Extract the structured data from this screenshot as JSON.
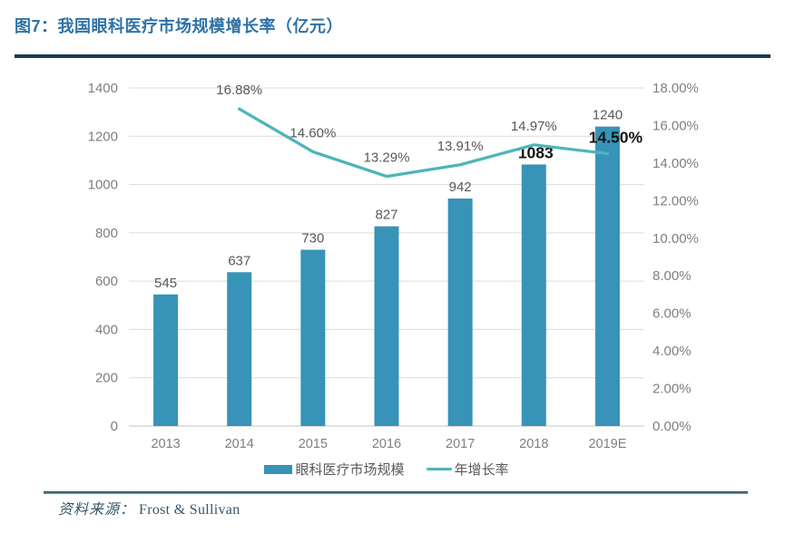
{
  "figure": {
    "title": "图7：我国眼科医疗市场规模增长率（亿元）",
    "source_label": "资料来源：",
    "source_value": "Frost & Sullivan"
  },
  "colors": {
    "title_text": "#2e72a6",
    "bar": "#3793b8",
    "line": "#4fb5ba",
    "grid": "#dcdcdc",
    "axis_line": "#c3c3c3",
    "axis_text": "#7f7f7f",
    "data_label_text": "#595959",
    "emphasis_text": "#141414",
    "top_rule": "#1e3a52",
    "bottom_rule_dark": "#1d3f57",
    "bottom_rule_light": "#7fa3b6",
    "source_text": "#35566b",
    "legend_text": "#595959"
  },
  "chart_data": {
    "type": "bar+line combo",
    "title": "我国眼科医疗市场规模增长率（亿元）",
    "categories": [
      "2013",
      "2014",
      "2015",
      "2016",
      "2017",
      "2018",
      "2019E"
    ],
    "series": [
      {
        "name": "眼科医疗市场规模",
        "type": "bar",
        "axis": "left",
        "values": [
          545,
          637,
          730,
          827,
          942,
          1083,
          1240
        ],
        "labels": [
          "545",
          "637",
          "730",
          "827",
          "942",
          "1083",
          "1240"
        ]
      },
      {
        "name": "年增长率",
        "type": "line",
        "axis": "right",
        "values": [
          null,
          16.88,
          14.6,
          13.29,
          13.91,
          14.97,
          14.5
        ],
        "labels": [
          null,
          "16.88%",
          "14.60%",
          "13.29%",
          "13.91%",
          "14.97%",
          "14.50%"
        ]
      }
    ],
    "left_axis": {
      "min": 0,
      "max": 1400,
      "step": 200,
      "ticks_top_to_bottom": [
        "1400",
        "1200",
        "1000",
        "800",
        "600",
        "400",
        "200",
        "0"
      ]
    },
    "right_axis": {
      "min": 0,
      "max": 18,
      "step": 2,
      "ticks_top_to_bottom": [
        "18.00%",
        "16.00%",
        "14.00%",
        "12.00%",
        "10.00%",
        "8.00%",
        "6.00%",
        "4.00%",
        "2.00%",
        "0.00%"
      ]
    },
    "emphasized_labels": [
      "1083",
      "14.50%"
    ],
    "legend": [
      {
        "label": "眼科医疗市场规模",
        "type": "bar"
      },
      {
        "label": "年增长率",
        "type": "line"
      }
    ],
    "grid": true,
    "legend_position": "bottom"
  }
}
